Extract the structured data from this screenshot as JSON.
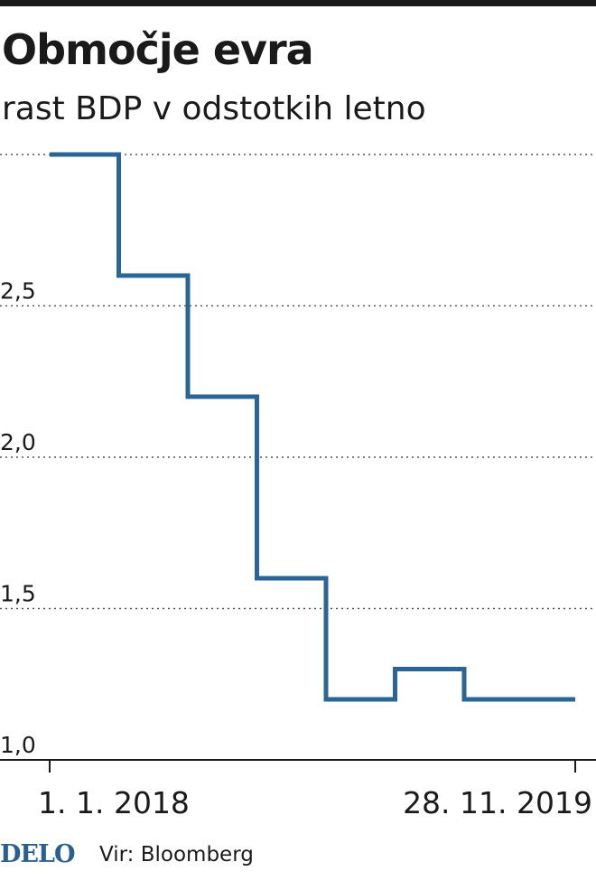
{
  "chart_data": {
    "type": "line",
    "step": true,
    "title": "Območje evra",
    "subtitle": "rast BDP v odstotkih letno",
    "xlabel": "",
    "ylabel": "",
    "ylim": [
      1.0,
      3.0
    ],
    "y_ticks": [
      1.0,
      1.5,
      2.0,
      2.5
    ],
    "y_tick_labels": [
      "1,0",
      "1,5",
      "2,0",
      "2,5"
    ],
    "x_tick_labels": [
      "1. 1. 2018",
      "28. 11. 2019"
    ],
    "grid": true,
    "color": "#2a6596",
    "series": [
      {
        "values": [
          3.0,
          2.6,
          2.2,
          1.6,
          1.2,
          1.3,
          1.2
        ]
      }
    ]
  },
  "footer": {
    "brand": "DELO",
    "source": "Vir: Bloomberg"
  }
}
